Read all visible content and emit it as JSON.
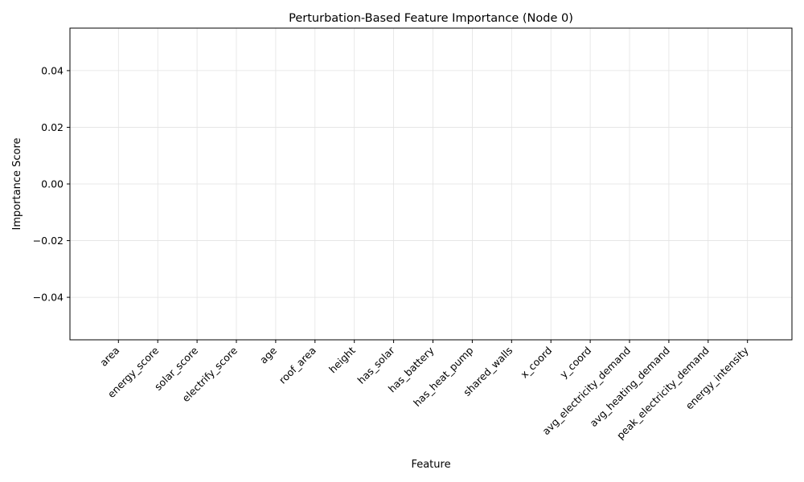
{
  "chart_data": {
    "type": "bar",
    "title": "Perturbation-Based Feature Importance (Node 0)",
    "xlabel": "Feature",
    "ylabel": "Importance Score",
    "categories": [
      "area",
      "energy_score",
      "solar_score",
      "electrify_score",
      "age",
      "roof_area",
      "height",
      "has_solar",
      "has_battery",
      "has_heat_pump",
      "shared_walls",
      "x_coord",
      "y_coord",
      "avg_electricity_demand",
      "avg_heating_demand",
      "peak_electricity_demand",
      "energy_intensity"
    ],
    "values": [
      0,
      0,
      0,
      0,
      0,
      0,
      0,
      0,
      0,
      0,
      0,
      0,
      0,
      0,
      0,
      0,
      0
    ],
    "ylim": [
      -0.055,
      0.055
    ],
    "yticks": [
      -0.04,
      -0.02,
      0.0,
      0.02,
      0.04
    ],
    "ytick_labels": [
      "−0.04",
      "−0.02",
      "0.00",
      "0.02",
      "0.04"
    ],
    "grid": true,
    "bar_color": "#1f77b4"
  }
}
